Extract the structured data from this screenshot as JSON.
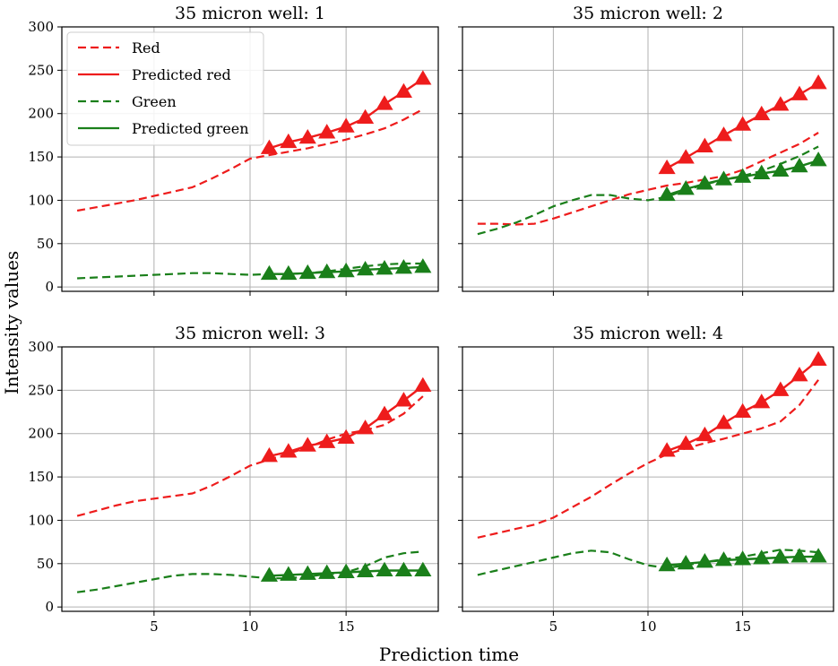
{
  "chart_data": {
    "type": "line",
    "xlabel": "Prediction time",
    "ylabel": "Intensity values",
    "xlim": [
      0.2,
      19.8
    ],
    "ylim": [
      -5,
      300
    ],
    "xticks": [
      5,
      10,
      15
    ],
    "yticks": [
      0,
      50,
      100,
      150,
      200,
      250,
      300
    ],
    "grid": true,
    "legend": {
      "location": "top-left of first panel",
      "entries": [
        {
          "label": "Red",
          "color": "#ee1c1c",
          "style": "dashed"
        },
        {
          "label": "Predicted red",
          "color": "#ee1c1c",
          "style": "solid-triangle"
        },
        {
          "label": "Green",
          "color": "#1a7f1a",
          "style": "dashed"
        },
        {
          "label": "Predicted green",
          "color": "#1a7f1a",
          "style": "solid-triangle"
        }
      ]
    },
    "panels": [
      {
        "title": "35 micron well: 1",
        "series": [
          {
            "name": "Red",
            "x": [
              1,
              2,
              3,
              4,
              5,
              6,
              7,
              8,
              9,
              10,
              11,
              12,
              13,
              14,
              15,
              16,
              17,
              18,
              19
            ],
            "values": [
              88,
              92,
              96,
              100,
              105,
              110,
              115,
              125,
              136,
              148,
              152,
              156,
              160,
              165,
              170,
              176,
              183,
              193,
              205
            ]
          },
          {
            "name": "Predicted red",
            "x": [
              11,
              12,
              13,
              14,
              15,
              16,
              17,
              18,
              19
            ],
            "values": [
              160,
              167,
              172,
              178,
              185,
              195,
              211,
              225,
              240
            ]
          },
          {
            "name": "Green",
            "x": [
              1,
              2,
              3,
              4,
              5,
              6,
              7,
              8,
              9,
              10,
              11,
              12,
              13,
              14,
              15,
              16,
              17,
              18,
              19
            ],
            "values": [
              10,
              11,
              12,
              13,
              14,
              15,
              16,
              16,
              15,
              14,
              15,
              15,
              16,
              18,
              21,
              24,
              26,
              27,
              27
            ]
          },
          {
            "name": "Predicted green",
            "x": [
              11,
              12,
              13,
              14,
              15,
              16,
              17,
              18,
              19
            ],
            "values": [
              15,
              15,
              16,
              17,
              18,
              20,
              21,
              22,
              23
            ]
          }
        ]
      },
      {
        "title": "35 micron well: 2",
        "series": [
          {
            "name": "Red",
            "x": [
              1,
              2,
              3,
              4,
              5,
              6,
              7,
              8,
              9,
              10,
              11,
              12,
              13,
              14,
              15,
              16,
              17,
              18,
              19
            ],
            "values": [
              73,
              73,
              72,
              73,
              79,
              86,
              93,
              100,
              107,
              112,
              117,
              120,
              124,
              128,
              135,
              145,
              155,
              165,
              178
            ]
          },
          {
            "name": "Predicted red",
            "x": [
              11,
              12,
              13,
              14,
              15,
              16,
              17,
              18,
              19
            ],
            "values": [
              137,
              149,
              162,
              175,
              187,
              199,
              210,
              222,
              235
            ]
          },
          {
            "name": "Green",
            "x": [
              1,
              2,
              3,
              4,
              5,
              6,
              7,
              8,
              9,
              10,
              11,
              12,
              13,
              14,
              15,
              16,
              17,
              18,
              19
            ],
            "values": [
              61,
              67,
              74,
              83,
              93,
              100,
              106,
              106,
              102,
              100,
              104,
              112,
              118,
              124,
              128,
              134,
              142,
              151,
              162
            ]
          },
          {
            "name": "Predicted green",
            "x": [
              11,
              12,
              13,
              14,
              15,
              16,
              17,
              18,
              19
            ],
            "values": [
              106,
              113,
              119,
              124,
              127,
              131,
              134,
              139,
              146
            ]
          }
        ]
      },
      {
        "title": "35 micron well: 3",
        "series": [
          {
            "name": "Red",
            "x": [
              1,
              2,
              3,
              4,
              5,
              6,
              7,
              8,
              9,
              10,
              11,
              12,
              13,
              14,
              15,
              16,
              17,
              18,
              19
            ],
            "values": [
              105,
              111,
              117,
              122,
              125,
              128,
              131,
              140,
              151,
              163,
              170,
              177,
              184,
              193,
              200,
              204,
              210,
              223,
              243
            ]
          },
          {
            "name": "Predicted red",
            "x": [
              11,
              12,
              13,
              14,
              15,
              16,
              17,
              18,
              19
            ],
            "values": [
              174,
              179,
              186,
              190,
              195,
              206,
              222,
              238,
              255
            ]
          },
          {
            "name": "Green",
            "x": [
              1,
              2,
              3,
              4,
              5,
              6,
              7,
              8,
              9,
              10,
              11,
              12,
              13,
              14,
              15,
              16,
              17,
              18,
              19
            ],
            "values": [
              17,
              20,
              24,
              28,
              32,
              36,
              38,
              38,
              37,
              35,
              33,
              33,
              35,
              38,
              40,
              47,
              57,
              62,
              64
            ]
          },
          {
            "name": "Predicted green",
            "x": [
              11,
              12,
              13,
              14,
              15,
              16,
              17,
              18,
              19
            ],
            "values": [
              36,
              37,
              38,
              39,
              40,
              41,
              42,
              42,
              42
            ]
          }
        ]
      },
      {
        "title": "35 micron well: 4",
        "series": [
          {
            "name": "Red",
            "x": [
              1,
              2,
              3,
              4,
              5,
              6,
              7,
              8,
              9,
              10,
              11,
              12,
              13,
              14,
              15,
              16,
              17,
              18,
              19
            ],
            "values": [
              80,
              85,
              90,
              95,
              103,
              115,
              127,
              141,
              154,
              166,
              176,
              183,
              189,
              194,
              200,
              206,
              214,
              233,
              262
            ]
          },
          {
            "name": "Predicted red",
            "x": [
              11,
              12,
              13,
              14,
              15,
              16,
              17,
              18,
              19
            ],
            "values": [
              180,
              188,
              198,
              212,
              225,
              236,
              250,
              267,
              285
            ]
          },
          {
            "name": "Green",
            "x": [
              1,
              2,
              3,
              4,
              5,
              6,
              7,
              8,
              9,
              10,
              11,
              12,
              13,
              14,
              15,
              16,
              17,
              18,
              19
            ],
            "values": [
              37,
              42,
              47,
              52,
              57,
              62,
              65,
              63,
              55,
              48,
              45,
              48,
              52,
              55,
              58,
              62,
              66,
              65,
              63
            ]
          },
          {
            "name": "Predicted green",
            "x": [
              11,
              12,
              13,
              14,
              15,
              16,
              17,
              18,
              19
            ],
            "values": [
              48,
              50,
              52,
              54,
              55,
              56,
              57,
              58,
              58
            ]
          }
        ]
      }
    ]
  }
}
